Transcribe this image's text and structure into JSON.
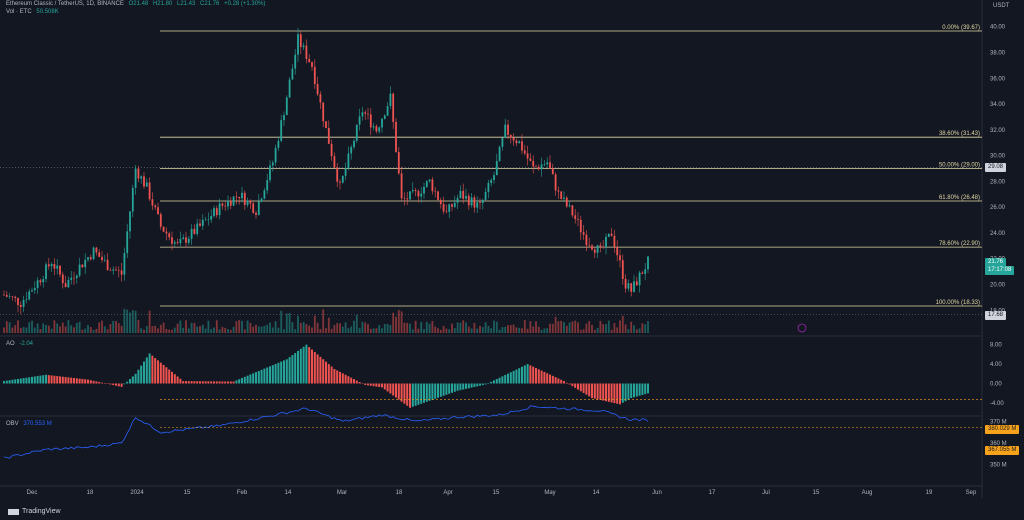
{
  "header": {
    "symbol": "Ethereum Classic / TetherUS, 1D, BINANCE",
    "open": "O21.48",
    "high": "H21.80",
    "low": "L21.43",
    "close": "C21.76",
    "change": "+0.28 (+1.30%)",
    "vol_label": "Vol · ETC",
    "vol_value": "50.508K",
    "ao_label": "AO",
    "ao_value": "-2.04",
    "obv_label": "OBV",
    "obv_value": "370.553 M",
    "currency": "USDT"
  },
  "colors": {
    "bg": "#131722",
    "up": "#26a69a",
    "down": "#ef5350",
    "fib": "#e2d8a5",
    "obv": "#2962ff",
    "grid": "#1e222d",
    "text": "#b2b5be"
  },
  "price_axis": {
    "ticks": [
      "40.00",
      "38.00",
      "36.00",
      "34.00",
      "32.00",
      "30.00",
      "28.00",
      "26.00",
      "24.00",
      "22.00",
      "20.00",
      "18.00"
    ],
    "current_price": "21.76",
    "countdown": "17:17:08",
    "ref_high": "29.08",
    "ref_low": "17.68"
  },
  "fibonacci": [
    {
      "label": "0.00% (39.67)",
      "price": 39.67
    },
    {
      "label": "38.60% (31.43)",
      "price": 31.43
    },
    {
      "label": "50.00% (29.00)",
      "price": 29.0
    },
    {
      "label": "61.80% (26.48)",
      "price": 26.48
    },
    {
      "label": "78.60% (22.90)",
      "price": 22.9
    },
    {
      "label": "100.00% (18.33)",
      "price": 18.33
    }
  ],
  "ao_axis": {
    "ticks": [
      "8.00",
      "4.00",
      "0.00",
      "-4.00"
    ]
  },
  "obv_axis": {
    "ticks": [
      "370 M",
      "360 M",
      "350 M"
    ],
    "level_high": "380.029 M",
    "level_low": "367.055 M"
  },
  "time_axis": [
    "Dec",
    "18",
    "2024",
    "15",
    "Feb",
    "14",
    "Mar",
    "18",
    "Apr",
    "15",
    "May",
    "14",
    "Jun",
    "17",
    "Jul",
    "15",
    "Aug",
    "19",
    "Sep"
  ],
  "brand": "TradingView",
  "chart_data": {
    "type": "candlestick",
    "title": "Ethereum Classic / TetherUS, 1D, BINANCE",
    "ylabel": "USDT",
    "ylim": [
      17,
      41
    ],
    "anchors": [
      [
        "2023-11-25",
        19.2
      ],
      [
        "2023-12-01",
        18.6
      ],
      [
        "2023-12-08",
        20.5
      ],
      [
        "2023-12-12",
        21.8
      ],
      [
        "2023-12-17",
        20.0
      ],
      [
        "2023-12-22",
        21.4
      ],
      [
        "2023-12-27",
        22.6
      ],
      [
        "2024-01-01",
        21.5
      ],
      [
        "2024-01-06",
        20.8
      ],
      [
        "2024-01-11",
        29.0
      ],
      [
        "2024-01-15",
        27.5
      ],
      [
        "2024-01-20",
        24.5
      ],
      [
        "2024-01-26",
        23.0
      ],
      [
        "2024-02-03",
        24.5
      ],
      [
        "2024-02-10",
        26.0
      ],
      [
        "2024-02-17",
        27.0
      ],
      [
        "2024-02-23",
        25.8
      ],
      [
        "2024-02-29",
        29.5
      ],
      [
        "2024-03-04",
        33.5
      ],
      [
        "2024-03-09",
        39.0
      ],
      [
        "2024-03-14",
        37.0
      ],
      [
        "2024-03-19",
        32.0
      ],
      [
        "2024-03-24",
        27.5
      ],
      [
        "2024-04-01",
        33.5
      ],
      [
        "2024-04-06",
        32.0
      ],
      [
        "2024-04-11",
        34.5
      ],
      [
        "2024-04-15",
        26.5
      ],
      [
        "2024-04-20",
        27.0
      ],
      [
        "2024-04-25",
        28.0
      ],
      [
        "2024-05-01",
        25.5
      ],
      [
        "2024-05-06",
        27.0
      ],
      [
        "2024-05-13",
        26.0
      ],
      [
        "2024-05-18",
        28.5
      ],
      [
        "2024-05-22",
        32.0
      ],
      [
        "2024-05-27",
        31.0
      ],
      [
        "2024-06-01",
        29.0
      ],
      [
        "2024-06-06",
        29.5
      ],
      [
        "2024-06-10",
        27.0
      ],
      [
        "2024-06-15",
        25.5
      ],
      [
        "2024-06-20",
        23.5
      ],
      [
        "2024-06-25",
        22.5
      ],
      [
        "2024-06-29",
        24.0
      ],
      [
        "2024-07-04",
        20.0
      ],
      [
        "2024-07-06",
        19.5
      ],
      [
        "2024-07-12",
        21.76
      ]
    ],
    "ao_anchors": [
      [
        "2023-11-25",
        0.5
      ],
      [
        "2023-12-10",
        1.8
      ],
      [
        "2023-12-25",
        0.8
      ],
      [
        "2024-01-06",
        -0.7
      ],
      [
        "2024-01-11",
        2.0
      ],
      [
        "2024-01-16",
        6.2
      ],
      [
        "2024-01-28",
        0.5
      ],
      [
        "2024-02-15",
        0.4
      ],
      [
        "2024-03-05",
        5.0
      ],
      [
        "2024-03-12",
        8.0
      ],
      [
        "2024-03-22",
        3.0
      ],
      [
        "2024-04-02",
        -0.3
      ],
      [
        "2024-04-08",
        -0.8
      ],
      [
        "2024-04-18",
        -5.0
      ],
      [
        "2024-05-05",
        -1.5
      ],
      [
        "2024-05-15",
        -0.2
      ],
      [
        "2024-05-30",
        4.0
      ],
      [
        "2024-06-12",
        0.5
      ],
      [
        "2024-06-22",
        -3.0
      ],
      [
        "2024-07-02",
        -4.3
      ],
      [
        "2024-07-06",
        -3.0
      ],
      [
        "2024-07-12",
        -2.04
      ]
    ],
    "obv_anchors": [
      [
        "2023-11-25",
        353
      ],
      [
        "2023-12-10",
        357
      ],
      [
        "2023-12-25",
        358
      ],
      [
        "2024-01-06",
        360
      ],
      [
        "2024-01-11",
        372
      ],
      [
        "2024-01-20",
        365
      ],
      [
        "2024-02-10",
        368
      ],
      [
        "2024-03-01",
        373
      ],
      [
        "2024-03-12",
        376
      ],
      [
        "2024-03-25",
        370
      ],
      [
        "2024-04-08",
        373
      ],
      [
        "2024-04-20",
        370
      ],
      [
        "2024-05-05",
        372
      ],
      [
        "2024-05-20",
        373
      ],
      [
        "2024-06-01",
        377
      ],
      [
        "2024-06-12",
        376
      ],
      [
        "2024-06-25",
        375
      ],
      [
        "2024-07-05",
        371
      ],
      [
        "2024-07-12",
        370.553
      ]
    ]
  }
}
